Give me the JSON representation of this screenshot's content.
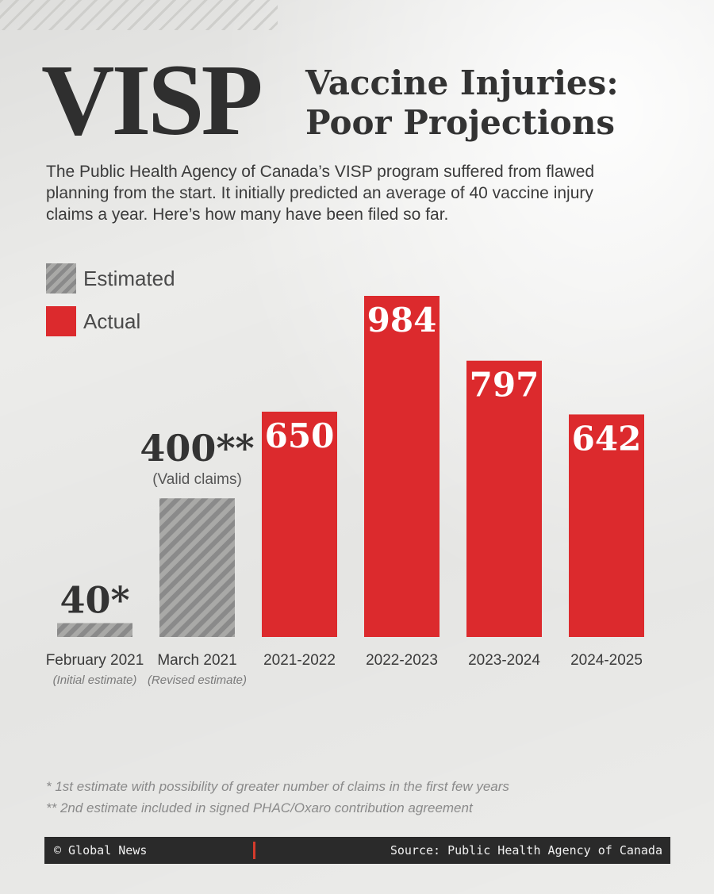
{
  "header": {
    "title": "VISP",
    "subtitle_line1": "Vaccine Injuries:",
    "subtitle_line2": "Poor Projections",
    "intro_line1": "The Public Health Agency of Canada’s VISP program suffered from flawed",
    "intro_line2": "planning from the start. It initially predicted an average of 40 vaccine injury",
    "intro_line3": "claims a year. Here’s how many have been filed so far."
  },
  "legend": {
    "estimated": "Estimated",
    "actual": "Actual"
  },
  "colors": {
    "actual": "#dc2a2d",
    "estimated_dark": "#8a8a8a",
    "estimated_light": "#a9a9a7",
    "label_dark": "#333333",
    "footer_bg": "#2a2a2a",
    "footer_accent": "#d43b2c"
  },
  "chart_data": {
    "type": "bar",
    "categories": [
      "February 2021",
      "March 2021",
      "2021-2022",
      "2022-2023",
      "2023-2024",
      "2024-2025"
    ],
    "sublabels": [
      "(Initial estimate)",
      "(Revised estimate)",
      "",
      "",
      "",
      ""
    ],
    "values": [
      40,
      400,
      650,
      984,
      797,
      642
    ],
    "value_labels": [
      "40*",
      "400**",
      "650",
      "984",
      "797",
      "642"
    ],
    "value_notes": [
      "",
      "(Valid claims)",
      "",
      "",
      "",
      ""
    ],
    "kinds": [
      "estimated",
      "estimated",
      "actual",
      "actual",
      "actual",
      "actual"
    ],
    "legend_position": "top-left",
    "grid": false
  },
  "footnotes": {
    "note1": "* 1st estimate with possibility of greater number of claims in the first few years",
    "note2": "** 2nd estimate included in signed PHAC/Oxaro contribution agreement"
  },
  "footer": {
    "credit": "© Global News",
    "source": "Source: Public Health Agency of Canada"
  }
}
